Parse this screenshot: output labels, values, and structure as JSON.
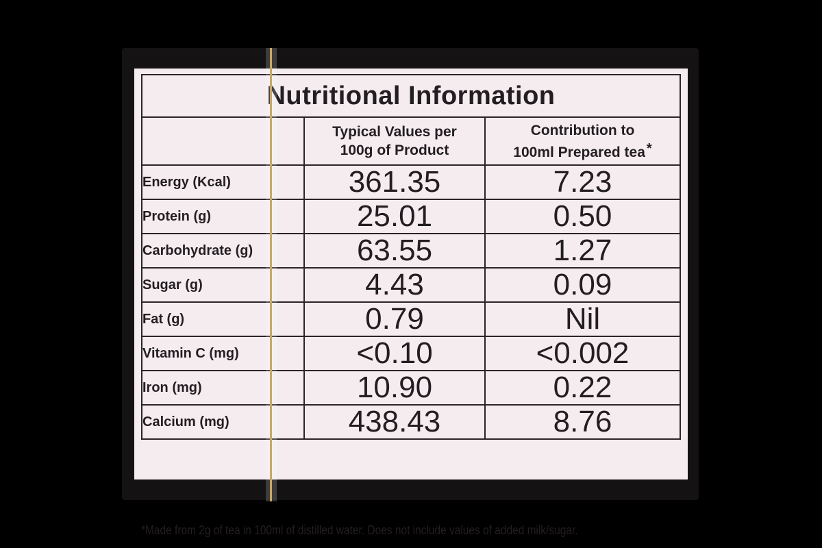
{
  "label": {
    "title": "Nutritional Information",
    "columns": {
      "per_100g_line1": "Typical Values per",
      "per_100g_line2": "100g of Product",
      "per_100ml_line1": "Contribution to",
      "per_100ml_line2": "100ml Prepared tea",
      "per_100ml_marker": "*"
    },
    "rows": [
      {
        "nutrient": "Energy (Kcal)",
        "per_100g": "361.35",
        "per_100ml": "7.23"
      },
      {
        "nutrient": "Protein (g)",
        "per_100g": "25.01",
        "per_100ml": "0.50"
      },
      {
        "nutrient": "Carbohydrate (g)",
        "per_100g": "63.55",
        "per_100ml": "1.27"
      },
      {
        "nutrient": "Sugar (g)",
        "per_100g": "4.43",
        "per_100ml": "0.09"
      },
      {
        "nutrient": "Fat (g)",
        "per_100g": "0.79",
        "per_100ml": "Nil"
      },
      {
        "nutrient": "Vitamin C (mg)",
        "per_100g": "<0.10",
        "per_100ml": "<0.002"
      },
      {
        "nutrient": "Iron (mg)",
        "per_100g": "10.90",
        "per_100ml": "0.22"
      },
      {
        "nutrient": "Calcium (mg)",
        "per_100g": "438.43",
        "per_100ml": "8.76"
      }
    ],
    "footnote": "*Made from 2g of tea in 100ml of distilled water. Does not include values of added milk/sugar."
  },
  "colors": {
    "background": "#000000",
    "label_paper": "#f4ecef",
    "ink": "#231e22",
    "string": "#c9a86a"
  }
}
